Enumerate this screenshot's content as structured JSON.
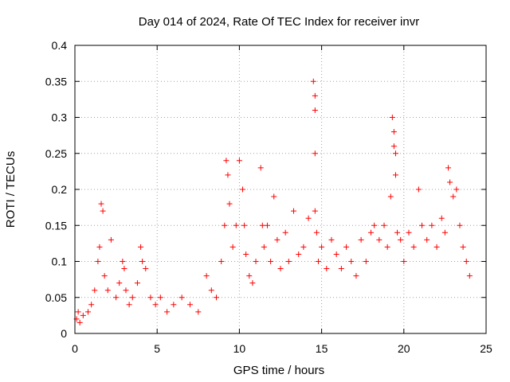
{
  "chart_data": {
    "type": "scatter",
    "title": "Day 014 of 2024, Rate Of TEC Index for receiver invr",
    "xlabel": "GPS time / hours",
    "ylabel": "ROTI / TECUs",
    "xlim": [
      0,
      25
    ],
    "ylim": [
      0,
      0.4
    ],
    "xticks": [
      0,
      5,
      10,
      15,
      20,
      25
    ],
    "xtick_labels": [
      "0",
      "5",
      "10",
      "15",
      "20",
      "25"
    ],
    "yticks": [
      0,
      0.05,
      0.1,
      0.15,
      0.2,
      0.25,
      0.3,
      0.35,
      0.4
    ],
    "ytick_labels": [
      "0",
      "0.05",
      "0.1",
      "0.15",
      "0.2",
      "0.25",
      "0.3",
      "0.35",
      "0.4"
    ],
    "grid": true,
    "marker": "+",
    "marker_color": "#ff0000",
    "series": [
      {
        "name": "ROTI",
        "x": [
          0.1,
          0.2,
          0.3,
          0.5,
          0.8,
          1.0,
          1.2,
          1.4,
          1.5,
          1.6,
          1.7,
          1.8,
          2.0,
          2.2,
          2.5,
          2.7,
          2.9,
          3.0,
          3.1,
          3.3,
          3.5,
          3.8,
          4.0,
          4.1,
          4.3,
          4.6,
          4.9,
          5.2,
          5.6,
          6.0,
          6.5,
          7.0,
          7.5,
          8.0,
          8.3,
          8.6,
          8.9,
          9.1,
          9.2,
          9.3,
          9.4,
          9.6,
          9.8,
          10.0,
          10.2,
          10.3,
          10.4,
          10.6,
          10.8,
          11.0,
          11.3,
          11.4,
          11.5,
          11.7,
          11.9,
          12.1,
          12.3,
          12.5,
          12.8,
          13.0,
          13.3,
          13.6,
          13.9,
          14.2,
          14.5,
          14.6,
          14.6,
          14.6,
          14.6,
          14.7,
          14.8,
          15.0,
          15.3,
          15.6,
          15.9,
          16.2,
          16.5,
          16.8,
          17.1,
          17.4,
          17.7,
          18.0,
          18.2,
          18.5,
          18.8,
          19.0,
          19.2,
          19.3,
          19.4,
          19.4,
          19.5,
          19.5,
          19.6,
          19.8,
          20.0,
          20.3,
          20.6,
          20.9,
          21.1,
          21.4,
          21.7,
          22.0,
          22.3,
          22.5,
          22.7,
          22.8,
          23.0,
          23.2,
          23.4,
          23.6,
          23.8,
          24.0
        ],
        "y": [
          0.02,
          0.03,
          0.015,
          0.025,
          0.03,
          0.04,
          0.06,
          0.1,
          0.12,
          0.18,
          0.17,
          0.08,
          0.06,
          0.13,
          0.05,
          0.07,
          0.1,
          0.09,
          0.06,
          0.04,
          0.05,
          0.07,
          0.12,
          0.1,
          0.09,
          0.05,
          0.04,
          0.05,
          0.03,
          0.04,
          0.05,
          0.04,
          0.03,
          0.08,
          0.06,
          0.05,
          0.1,
          0.15,
          0.24,
          0.22,
          0.18,
          0.12,
          0.15,
          0.24,
          0.2,
          0.15,
          0.11,
          0.08,
          0.07,
          0.1,
          0.23,
          0.15,
          0.12,
          0.15,
          0.1,
          0.19,
          0.13,
          0.09,
          0.14,
          0.1,
          0.17,
          0.11,
          0.12,
          0.16,
          0.35,
          0.33,
          0.31,
          0.25,
          0.17,
          0.14,
          0.1,
          0.12,
          0.09,
          0.13,
          0.11,
          0.09,
          0.12,
          0.1,
          0.08,
          0.13,
          0.1,
          0.14,
          0.15,
          0.13,
          0.15,
          0.12,
          0.19,
          0.3,
          0.28,
          0.26,
          0.25,
          0.22,
          0.14,
          0.13,
          0.1,
          0.14,
          0.12,
          0.2,
          0.15,
          0.13,
          0.15,
          0.12,
          0.16,
          0.14,
          0.23,
          0.21,
          0.19,
          0.2,
          0.15,
          0.12,
          0.1,
          0.08
        ]
      }
    ]
  }
}
